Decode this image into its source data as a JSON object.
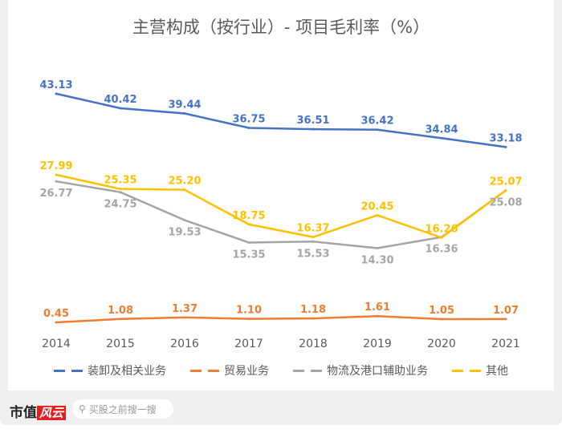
{
  "chart_data": {
    "type": "line",
    "title": "主营构成（按行业）- 项目毛利率（%）",
    "categories": [
      "2014",
      "2015",
      "2016",
      "2017",
      "2018",
      "2019",
      "2020",
      "2021"
    ],
    "series": [
      {
        "name": "装卸及相关业务",
        "color": "#4472c4",
        "values": [
          43.13,
          40.42,
          39.44,
          36.75,
          36.51,
          36.42,
          34.84,
          33.18
        ]
      },
      {
        "name": "贸易业务",
        "color": "#ed7d31",
        "values": [
          0.45,
          1.08,
          1.37,
          1.1,
          1.18,
          1.61,
          1.05,
          1.07
        ]
      },
      {
        "name": "物流及港口辅助业务",
        "color": "#a5a5a5",
        "values": [
          26.77,
          24.75,
          19.53,
          15.35,
          15.53,
          14.3,
          16.36,
          25.08
        ]
      },
      {
        "name": "其他",
        "color": "#ffc000",
        "values": [
          27.99,
          25.35,
          25.2,
          18.75,
          16.37,
          20.45,
          16.26,
          25.07
        ]
      }
    ],
    "legend": "bottom",
    "grid": false
  },
  "footer": {
    "brand": "市值",
    "brand_logo": "风云",
    "search_placeholder": "买股之前搜一搜"
  }
}
